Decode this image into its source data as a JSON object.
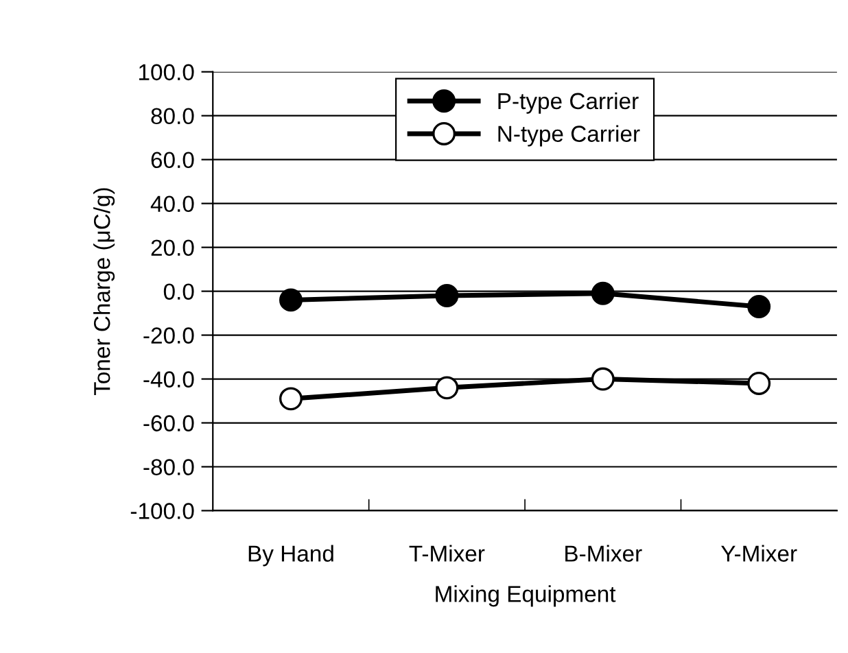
{
  "chart_data": {
    "type": "line",
    "xlabel": "Mixing Equipment",
    "ylabel": "Toner Charge (μC/g)",
    "categories": [
      "By Hand",
      "T-Mixer",
      "B-Mixer",
      "Y-Mixer"
    ],
    "series": [
      {
        "name": "P-type Carrier",
        "color": "#000000",
        "marker": "circle",
        "values": [
          -4,
          -2,
          -1,
          -7
        ]
      },
      {
        "name": "N-type Carrier",
        "color": "#000000",
        "marker": "circle",
        "values": [
          -49,
          -44,
          -40,
          -42
        ]
      }
    ],
    "ylim": [
      -100,
      100
    ],
    "yticks": [
      {
        "value": -100,
        "label": "-100.0"
      },
      {
        "value": -80,
        "label": "-80.0"
      },
      {
        "value": -60,
        "label": "-60.0"
      },
      {
        "value": -40,
        "label": "-40.0"
      },
      {
        "value": -20,
        "label": "-20.0"
      },
      {
        "value": 0,
        "label": "0.0"
      },
      {
        "value": 20,
        "label": "20.0"
      },
      {
        "value": 40,
        "label": "40.0"
      },
      {
        "value": 60,
        "label": "60.0"
      },
      {
        "value": 80,
        "label": "80.0"
      },
      {
        "value": 100,
        "label": "100.0"
      }
    ],
    "grid": "y",
    "legend": "top",
    "line_style": "solid"
  }
}
